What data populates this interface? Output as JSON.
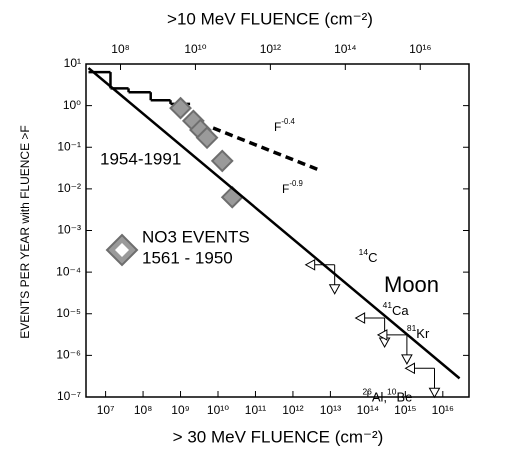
{
  "chart_data": {
    "type": "line",
    "xscale": "log",
    "yscale": "log",
    "x2label": ">10 MeV FLUENCE (cm⁻²)",
    "xlabel": "> 30 MeV FLUENCE (cm⁻²)",
    "ylabel": "EVENTS PER YEAR with FLUENCE >F",
    "xlim": [
      3000000,
      50000000000000000
    ],
    "xticks": [
      {
        "value": 10000000,
        "label": "10⁷"
      },
      {
        "value": 100000000,
        "label": "10⁸"
      },
      {
        "value": 1000000000,
        "label": "10⁹"
      },
      {
        "value": 10000000000,
        "label": "10¹⁰"
      },
      {
        "value": 100000000000,
        "label": "10¹¹"
      },
      {
        "value": 1000000000000,
        "label": "10¹²"
      },
      {
        "value": 10000000000000,
        "label": "10¹³"
      },
      {
        "value": 100000000000000,
        "label": "10¹⁴"
      },
      {
        "value": 1000000000000000,
        "label": "10¹⁵"
      },
      {
        "value": 10000000000000000,
        "label": "10¹⁶"
      }
    ],
    "x2lim": [
      12000000,
      200000000000000000
    ],
    "x2ticks": [
      {
        "value": 100000000,
        "label": "10⁸"
      },
      {
        "value": 10000000000,
        "label": "10¹⁰"
      },
      {
        "value": 1000000000000,
        "label": "10¹²"
      },
      {
        "value": 100000000000000,
        "label": "10¹⁴"
      },
      {
        "value": 10000000000000000,
        "label": "10¹⁶"
      }
    ],
    "ylim": [
      1e-07,
      10
    ],
    "yticks": [
      {
        "value": 10,
        "label": "10¹"
      },
      {
        "value": 1,
        "label": "10⁰"
      },
      {
        "value": 0.1,
        "label": "10⁻¹"
      },
      {
        "value": 0.01,
        "label": "10⁻²"
      },
      {
        "value": 0.001,
        "label": "10⁻³"
      },
      {
        "value": 0.0001,
        "label": "10⁻⁴"
      },
      {
        "value": 1e-05,
        "label": "10⁻⁵"
      },
      {
        "value": 1e-06,
        "label": "10⁻⁶"
      },
      {
        "value": 1e-07,
        "label": "10⁻⁷"
      }
    ],
    "series": [
      {
        "name": "1954-1991",
        "type": "step",
        "color": "#000000",
        "bins": [
          3500000,
          13500000,
          41000000,
          160000000,
          540000000,
          1800000000
        ],
        "values": [
          6.4,
          2.6,
          2.1,
          1.35,
          1.1
        ]
      },
      {
        "name": "NO3 EVENTS",
        "period": "1561 - 1950",
        "type": "diamond",
        "color": "#9a9a9a",
        "x": [
          1000000000,
          2200000000,
          3400000000,
          5100000000,
          13000000000,
          24000000000
        ],
        "values": [
          0.87,
          0.43,
          0.26,
          0.17,
          0.047,
          0.0063
        ]
      },
      {
        "name": [
          {
            "t": "F"
          },
          {
            "t": "-0.9",
            "sup": true
          }
        ],
        "type": "line",
        "dash": false,
        "color": "#000000",
        "x": [
          3500000,
          28000000000000000
        ],
        "values": [
          8,
          2.8e-07
        ]
      },
      {
        "name": [
          {
            "t": "F"
          },
          {
            "t": "-0.4",
            "sup": true
          }
        ],
        "type": "line",
        "dash": true,
        "color": "#000000",
        "x": [
          7400000000,
          5200000000000
        ],
        "values": [
          0.29,
          0.028
        ]
      },
      {
        "name": "Moon",
        "type": "limits",
        "color": "#000000",
        "x": [
          13000000000000,
          280000000000000,
          1100000000000000,
          6000000000000000
        ],
        "values": [
          0.00015,
          7.9e-06,
          3.1e-06,
          4.9e-07
        ],
        "labels": [
          [
            {
              "t": "14",
              "sup": true
            },
            {
              "t": "C"
            }
          ],
          [
            {
              "t": "41",
              "sup": true
            },
            {
              "t": "Ca"
            }
          ],
          [
            {
              "t": "81",
              "sup": true
            },
            {
              "t": "Kr"
            }
          ],
          [
            {
              "t": "26",
              "sup": true
            },
            {
              "t": "Al,"
            },
            {
              "t": "10",
              "sup": true
            },
            {
              "t": "Be"
            }
          ]
        ]
      }
    ]
  }
}
